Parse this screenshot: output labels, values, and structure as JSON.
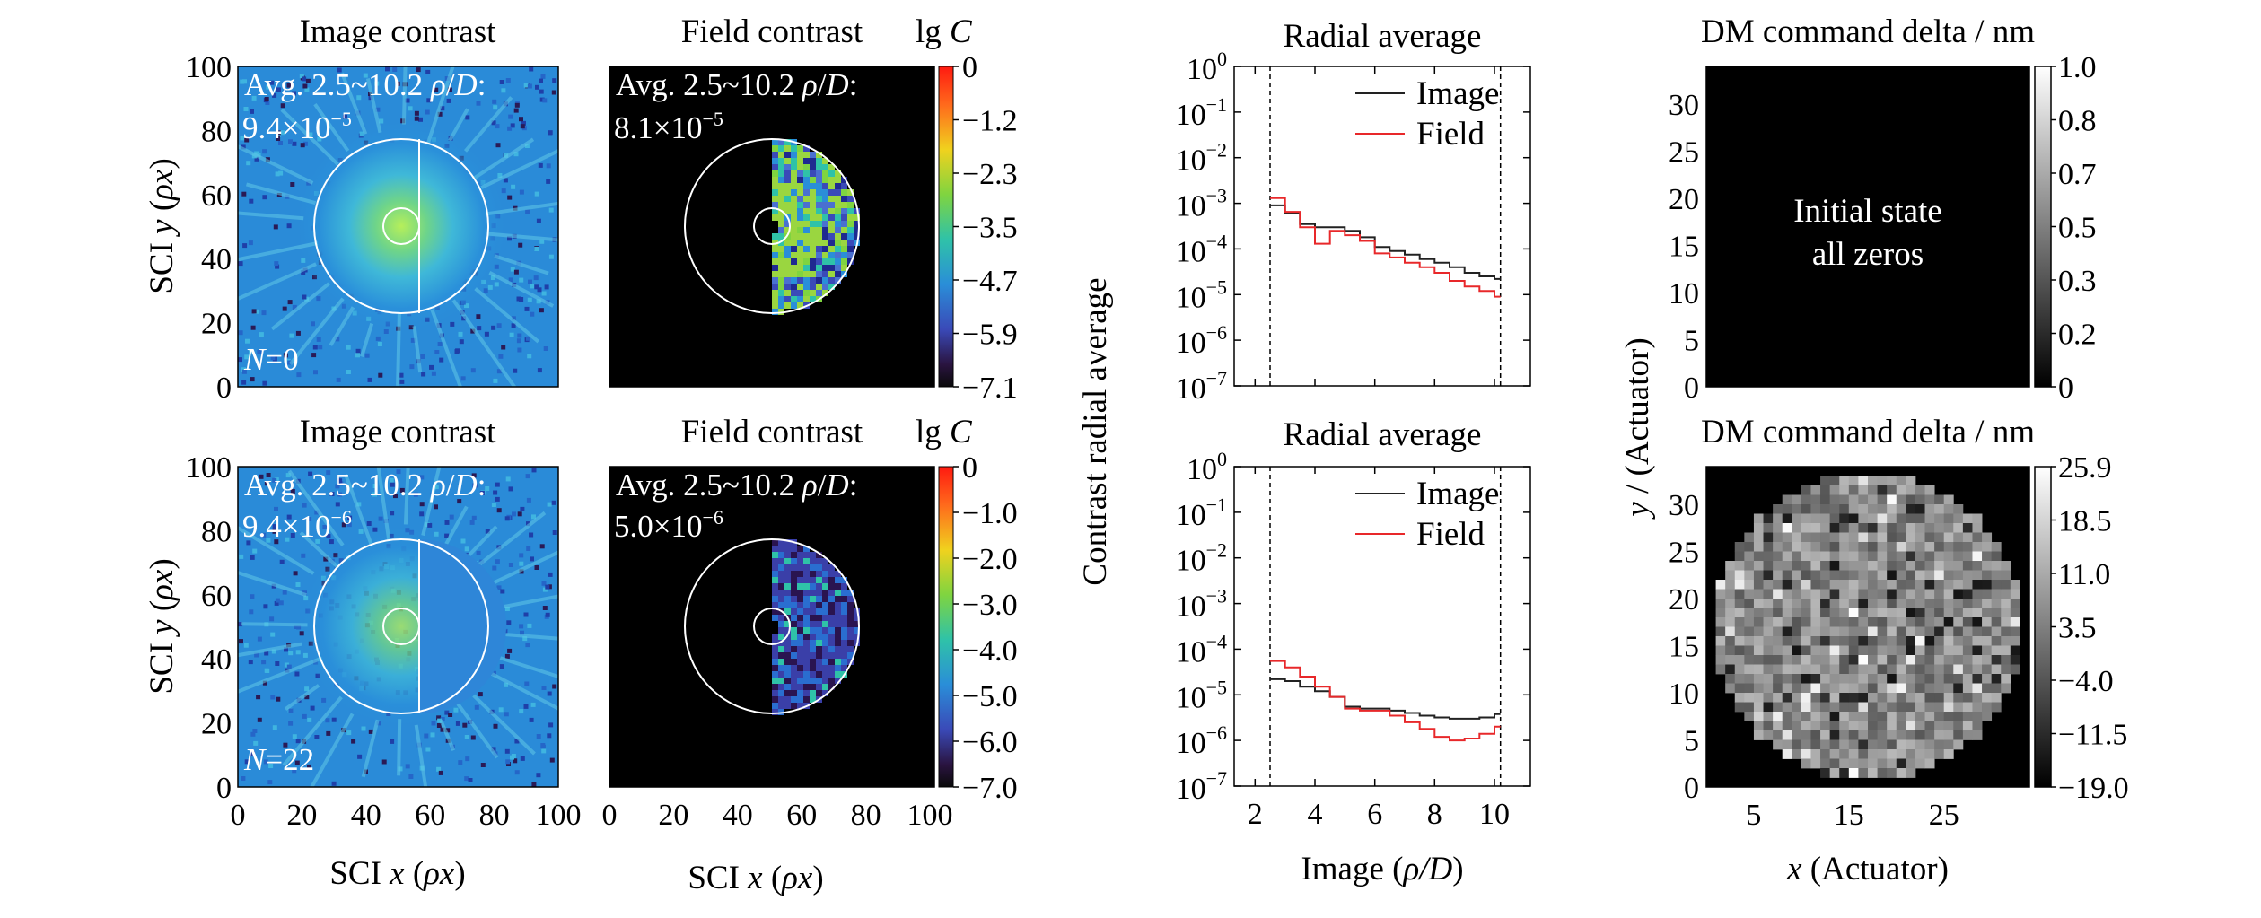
{
  "figure": {
    "image_maps": [
      {
        "title": "Image contrast",
        "avg_prefix": "Avg. 2.5~10.2 ",
        "avg_rho": "ρ",
        "avg_d": "D",
        "avg_mant": "9.4×10",
        "avg_exp": "−5",
        "iter_label": "N",
        "iter_value": "=0",
        "ylabel_pre": "SCI ",
        "ylabel_var": "y",
        "ylabel_unit": "ρx",
        "ticks": [
          "0",
          "20",
          "40",
          "60",
          "80",
          "100"
        ],
        "xlabel_pre": "",
        "xlabel_var": "",
        "xlabel_unit": ""
      },
      {
        "title": "Image contrast",
        "avg_prefix": "Avg. 2.5~10.2 ",
        "avg_rho": "ρ",
        "avg_d": "D",
        "avg_mant": "9.4×10",
        "avg_exp": "−6",
        "iter_label": "N",
        "iter_value": "=22",
        "ylabel_pre": "SCI ",
        "ylabel_var": "y",
        "ylabel_unit": "ρx",
        "ticks": [
          "0",
          "20",
          "40",
          "60",
          "80",
          "100"
        ],
        "xlabel_pre": "SCI ",
        "xlabel_var": "x",
        "xlabel_unit": "ρx"
      }
    ],
    "field_maps": [
      {
        "title": "Field contrast",
        "cbar_title": "lg ",
        "cbar_var": "C",
        "avg_prefix": "Avg. 2.5~10.2 ",
        "avg_rho": "ρ",
        "avg_d": "D",
        "avg_mant": "8.1×10",
        "avg_exp": "−5",
        "cbar_ticks": [
          "0",
          "−1.2",
          "−2.3",
          "−3.5",
          "−4.7",
          "−5.9",
          "−7.1"
        ],
        "xticks": [],
        "xlabel_pre": "",
        "xlabel_var": "",
        "xlabel_unit": ""
      },
      {
        "title": "Field contrast",
        "cbar_title": "lg ",
        "cbar_var": "C",
        "avg_prefix": "Avg. 2.5~10.2 ",
        "avg_rho": "ρ",
        "avg_d": "D",
        "avg_mant": "5.0×10",
        "avg_exp": "−6",
        "cbar_ticks": [
          "0",
          "−1.0",
          "−2.0",
          "−3.0",
          "−4.0",
          "−5.0",
          "−6.0",
          "−7.0"
        ],
        "xticks": [
          "0",
          "20",
          "40",
          "60",
          "80",
          "100"
        ],
        "xlabel_pre": "SCI ",
        "xlabel_var": "x",
        "xlabel_unit": "ρx"
      }
    ],
    "radial": {
      "ylabel": "Contrast radial average",
      "xlabel_pre": "Image  (",
      "xlabel_var": "ρ/D",
      "xlabel_post": ")",
      "ytick_exps": [
        "0",
        "−1",
        "−2",
        "−3",
        "−4",
        "−5",
        "−6",
        "−7"
      ],
      "xticks": [
        "2",
        "4",
        "6",
        "8",
        "10"
      ]
    },
    "dm": {
      "ylabel_var": "y",
      "ylabel_rest": " / (Actuator)",
      "xlabel_var": "x",
      "xlabel_rest": " (Actuator)",
      "yticks": [
        "0",
        "5",
        "10",
        "15",
        "20",
        "25",
        "30"
      ],
      "xticks": [
        "5",
        "15",
        "25"
      ],
      "panels": [
        {
          "title": "DM command delta / nm",
          "note_line1": "Initial state",
          "note_line2": "all zeros",
          "cbar_ticks": [
            "1.0",
            "0.8",
            "0.7",
            "0.5",
            "0.3",
            "0.2",
            "0"
          ]
        },
        {
          "title": "DM command delta / nm",
          "note_line1": "",
          "note_line2": "",
          "cbar_ticks": [
            "25.9",
            "18.5",
            "11.0",
            "3.5",
            "−4.0",
            "−11.5",
            "−19.0"
          ]
        }
      ]
    }
  },
  "chart_data": [
    {
      "type": "heatmap",
      "title": "Image contrast",
      "xlabel": "",
      "ylabel": "SCI y (ρx)",
      "xlim": [
        0,
        100
      ],
      "ylim": [
        0,
        100
      ],
      "annotation": "Avg. 2.5~10.2 ρ/D: 9.4×10−5",
      "N": 0,
      "mask": {
        "center": [
          51,
          51
        ],
        "inner_radius": 5.5,
        "outer_radius": 27
      }
    },
    {
      "type": "heatmap",
      "title": "Field contrast",
      "colorbar_label": "lg C",
      "colorbar_range": [
        -7.1,
        0
      ],
      "annotation": "Avg. 2.5~10.2 ρ/D: 8.1×10−5",
      "half_dark_hole": "right"
    },
    {
      "type": "heatmap",
      "title": "Image contrast",
      "xlabel": "SCI x (ρx)",
      "ylabel": "SCI y (ρx)",
      "xlim": [
        0,
        100
      ],
      "ylim": [
        0,
        100
      ],
      "annotation": "Avg. 2.5~10.2 ρ/D: 9.4×10−6",
      "N": 22
    },
    {
      "type": "heatmap",
      "title": "Field contrast",
      "xlabel": "SCI x (ρx)",
      "colorbar_label": "lg C",
      "colorbar_range": [
        -7.0,
        0
      ],
      "annotation": "Avg. 2.5~10.2 ρ/D: 5.0×10−6",
      "half_dark_hole": "right"
    },
    {
      "type": "line",
      "title": "Radial average",
      "ylabel": "Contrast radial average",
      "xlim": [
        1.3,
        11.2
      ],
      "ylim": [
        1e-07,
        1
      ],
      "yscale": "log",
      "reference_lines_x": [
        2.5,
        10.2
      ],
      "legend_position": "top-right",
      "x": [
        2.5,
        3.0,
        3.5,
        4.0,
        4.5,
        5.0,
        5.5,
        6.0,
        6.5,
        7.0,
        7.5,
        8.0,
        8.5,
        9.0,
        9.5,
        10.0,
        10.2
      ],
      "series": [
        {
          "name": "Image",
          "color": "#222222",
          "step": true,
          "values": [
            0.0009,
            0.0006,
            0.00035,
            0.0003,
            0.0003,
            0.00025,
            0.00018,
            0.00011,
            9e-05,
            7.5e-05,
            6e-05,
            5e-05,
            4e-05,
            3e-05,
            2.5e-05,
            2.2e-05,
            2.2e-05
          ]
        },
        {
          "name": "Field",
          "color": "#e8282a",
          "step": true,
          "values": [
            0.0013,
            0.00065,
            0.0003,
            0.00013,
            0.00025,
            0.0002,
            0.00015,
            8e-05,
            6.5e-05,
            5e-05,
            4e-05,
            3e-05,
            2e-05,
            1.5e-05,
            1.2e-05,
            9e-06,
            9e-06
          ]
        }
      ]
    },
    {
      "type": "line",
      "title": "Radial average",
      "xlabel": "Image (ρ/D)",
      "ylabel": "Contrast radial average",
      "xlim": [
        1.3,
        11.2
      ],
      "ylim": [
        1e-07,
        1
      ],
      "yscale": "log",
      "reference_lines_x": [
        2.5,
        10.2
      ],
      "legend_position": "top-right",
      "x": [
        2.5,
        3.0,
        3.5,
        4.0,
        4.5,
        5.0,
        5.5,
        6.0,
        6.5,
        7.0,
        7.5,
        8.0,
        8.5,
        9.0,
        9.5,
        10.0,
        10.2
      ],
      "series": [
        {
          "name": "Image",
          "color": "#222222",
          "step": true,
          "values": [
            2.2e-05,
            2e-05,
            1.5e-05,
            1.2e-05,
            9e-06,
            5.5e-06,
            5e-06,
            5e-06,
            4.5e-06,
            4e-06,
            3.5e-06,
            3.2e-06,
            3e-06,
            3e-06,
            3.2e-06,
            3.8e-06,
            3.8e-06
          ]
        },
        {
          "name": "Field",
          "color": "#e8282a",
          "step": true,
          "values": [
            5.5e-05,
            4e-05,
            2.5e-05,
            1.5e-05,
            9e-06,
            5e-06,
            4.5e-06,
            4.5e-06,
            3.5e-06,
            2.5e-06,
            1.8e-06,
            1.2e-06,
            1e-06,
            1.1e-06,
            1.4e-06,
            2e-06,
            2e-06
          ]
        }
      ]
    },
    {
      "type": "heatmap",
      "title": "DM command delta / nm",
      "ylabel": "y / (Actuator)",
      "xlim": [
        0,
        34
      ],
      "ylim": [
        0,
        34
      ],
      "colorbar_range": [
        0,
        1.0
      ],
      "annotation": "Initial state all zeros"
    },
    {
      "type": "heatmap",
      "title": "DM command delta / nm",
      "xlabel": "x (Actuator)",
      "xlim": [
        0,
        34
      ],
      "ylim": [
        0,
        34
      ],
      "colorbar_range": [
        -19.0,
        25.9
      ],
      "active_pupil_radius_actuators": 16
    }
  ]
}
